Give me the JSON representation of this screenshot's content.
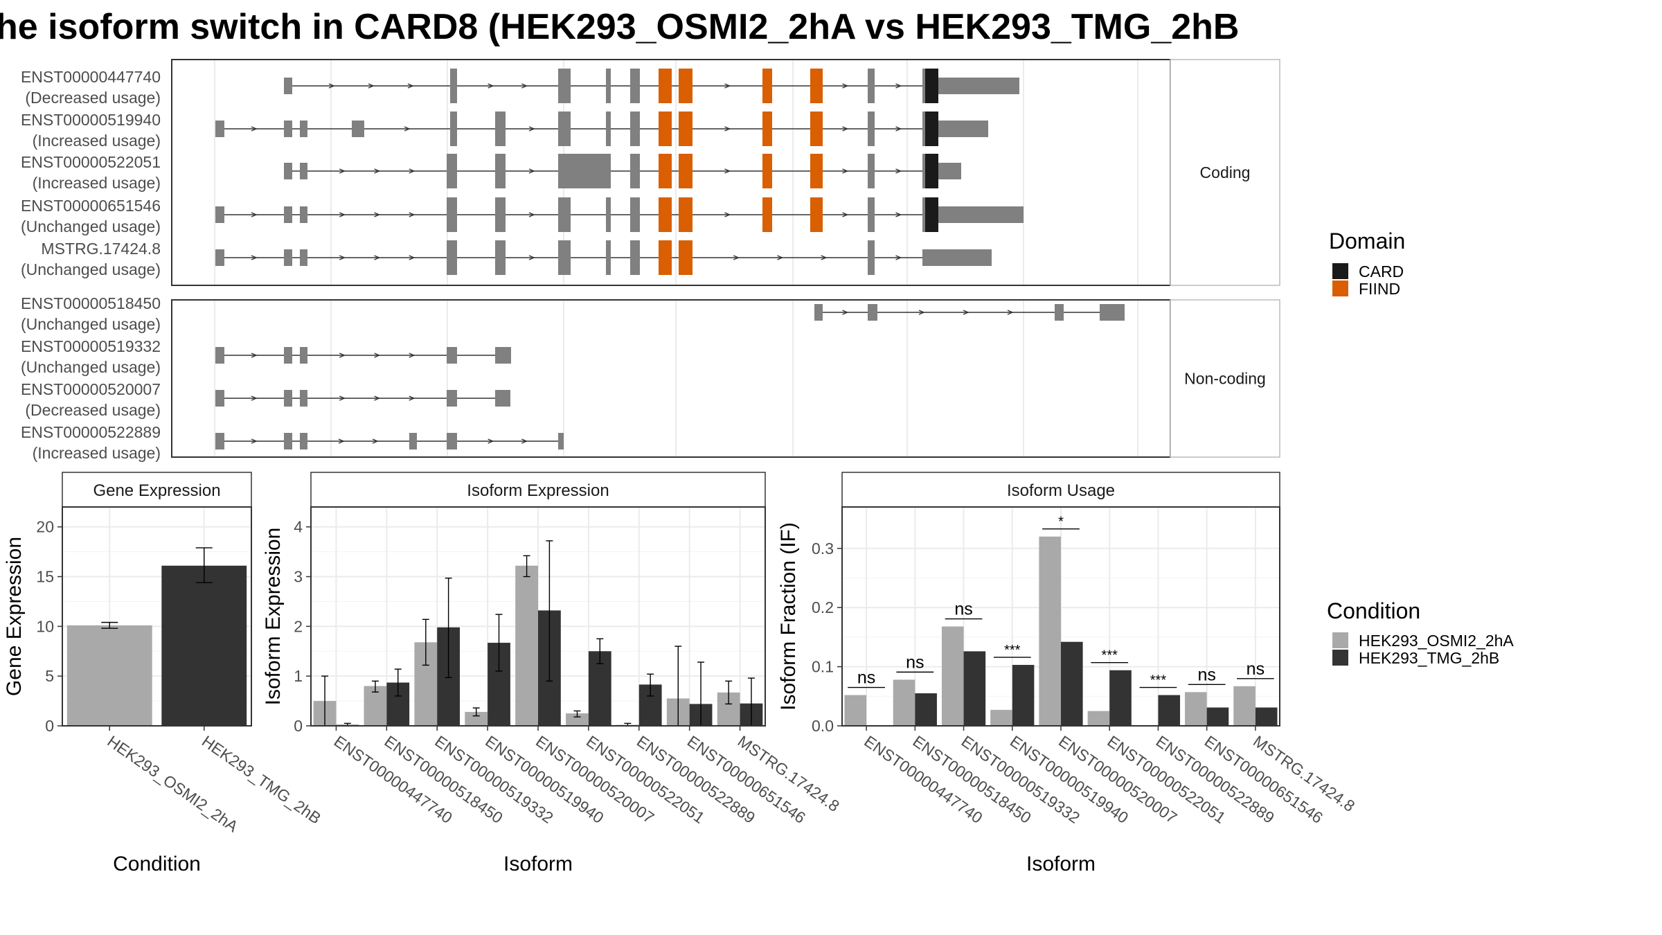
{
  "title": "he isoform switch in CARD8 (HEK293_OSMI2_2hA vs HEK293_TMG_2hB",
  "transcript_panel": {
    "groups": [
      {
        "label": "Coding",
        "transcripts": [
          {
            "id": "ENST00000447740",
            "usage": "(Decreased usage)"
          },
          {
            "id": "ENST00000519940",
            "usage": "(Increased usage)"
          },
          {
            "id": "ENST00000522051",
            "usage": "(Increased usage)"
          },
          {
            "id": "ENST00000651546",
            "usage": "(Unchanged usage)"
          },
          {
            "id": "MSTRG.17424.8",
            "usage": "(Unchanged usage)"
          }
        ]
      },
      {
        "label": "Non-coding",
        "transcripts": [
          {
            "id": "ENST00000518450",
            "usage": "(Unchanged usage)"
          },
          {
            "id": "ENST00000519332",
            "usage": "(Unchanged usage)"
          },
          {
            "id": "ENST00000520007",
            "usage": "(Decreased usage)"
          },
          {
            "id": "ENST00000522889",
            "usage": "(Increased usage)"
          }
        ]
      }
    ],
    "domain_legend": {
      "title": "Domain",
      "items": [
        {
          "label": "CARD",
          "color": "#1a1a1a"
        },
        {
          "label": "FIIND",
          "color": "#d95f02"
        }
      ]
    },
    "colors": {
      "exon": "#808080",
      "intron": "#333333"
    }
  },
  "condition_legend": {
    "title": "Condition",
    "items": [
      {
        "label": "HEK293_OSMI2_2hA",
        "color": "#a9a9a9"
      },
      {
        "label": "HEK293_TMG_2hB",
        "color": "#333333"
      }
    ]
  },
  "chart_data": [
    {
      "type": "bar",
      "title": "Gene Expression",
      "xlabel": "Condition",
      "ylabel": "Gene Expression",
      "ylim": [
        0,
        22
      ],
      "yticks": [
        0,
        5,
        10,
        15,
        20
      ],
      "categories": [
        "HEK293_OSMI2_2hA",
        "HEK293_TMG_2hB"
      ],
      "values": [
        10.1,
        16.1
      ],
      "err_low": [
        9.8,
        14.4
      ],
      "err_high": [
        10.4,
        17.9
      ]
    },
    {
      "type": "bar",
      "title": "Isoform Expression",
      "xlabel": "Isoform",
      "ylabel": "Isoform Expression",
      "ylim": [
        0,
        4.4
      ],
      "yticks": [
        0,
        1,
        2,
        3,
        4
      ],
      "categories": [
        "ENST00000447740",
        "ENST00000518450",
        "ENST00000519332",
        "ENST00000519940",
        "ENST00000520007",
        "ENST00000522051",
        "ENST00000522889",
        "ENST00000651546",
        "MSTRG.17424.8"
      ],
      "series": [
        {
          "name": "HEK293_OSMI2_2hA",
          "values": [
            0.5,
            0.8,
            1.68,
            0.28,
            3.22,
            0.25,
            0.02,
            0.55,
            0.67
          ],
          "err_low": [
            0.0,
            0.68,
            1.22,
            0.2,
            3.0,
            0.18,
            0.0,
            0.0,
            0.44
          ],
          "err_high": [
            1.0,
            0.9,
            2.14,
            0.36,
            3.42,
            0.3,
            0.05,
            1.6,
            0.9
          ]
        },
        {
          "name": "HEK293_TMG_2hB",
          "values": [
            0.02,
            0.87,
            1.98,
            1.67,
            2.32,
            1.5,
            0.83,
            0.44,
            0.45
          ],
          "err_low": [
            0.0,
            0.6,
            0.97,
            1.1,
            0.9,
            1.25,
            0.6,
            0.0,
            0.0
          ],
          "err_high": [
            0.05,
            1.14,
            2.97,
            2.24,
            3.72,
            1.75,
            1.04,
            1.28,
            0.96
          ]
        }
      ]
    },
    {
      "type": "bar",
      "title": "Isoform Usage",
      "xlabel": "Isoform",
      "ylabel": "Isoform Fraction (IF)",
      "ylim": [
        0,
        0.37
      ],
      "yticks": [
        0.0,
        0.1,
        0.2,
        0.3
      ],
      "ytick_labels": [
        "0.0",
        "0.1",
        "0.2",
        "0.3"
      ],
      "categories": [
        "ENST00000447740",
        "ENST00000518450",
        "ENST00000519332",
        "ENST00000519940",
        "ENST00000520007",
        "ENST00000522051",
        "ENST00000522889",
        "ENST00000651546",
        "MSTRG.17424.8"
      ],
      "series": [
        {
          "name": "HEK293_OSMI2_2hA",
          "values": [
            0.052,
            0.078,
            0.168,
            0.027,
            0.32,
            0.025,
            0.0,
            0.057,
            0.067
          ]
        },
        {
          "name": "HEK293_TMG_2hB",
          "values": [
            0.0,
            0.055,
            0.126,
            0.103,
            0.142,
            0.094,
            0.052,
            0.031,
            0.031
          ]
        }
      ],
      "significance": [
        "ns",
        "ns",
        "ns",
        "***",
        "*",
        "***",
        "***",
        "ns",
        "ns"
      ]
    }
  ]
}
